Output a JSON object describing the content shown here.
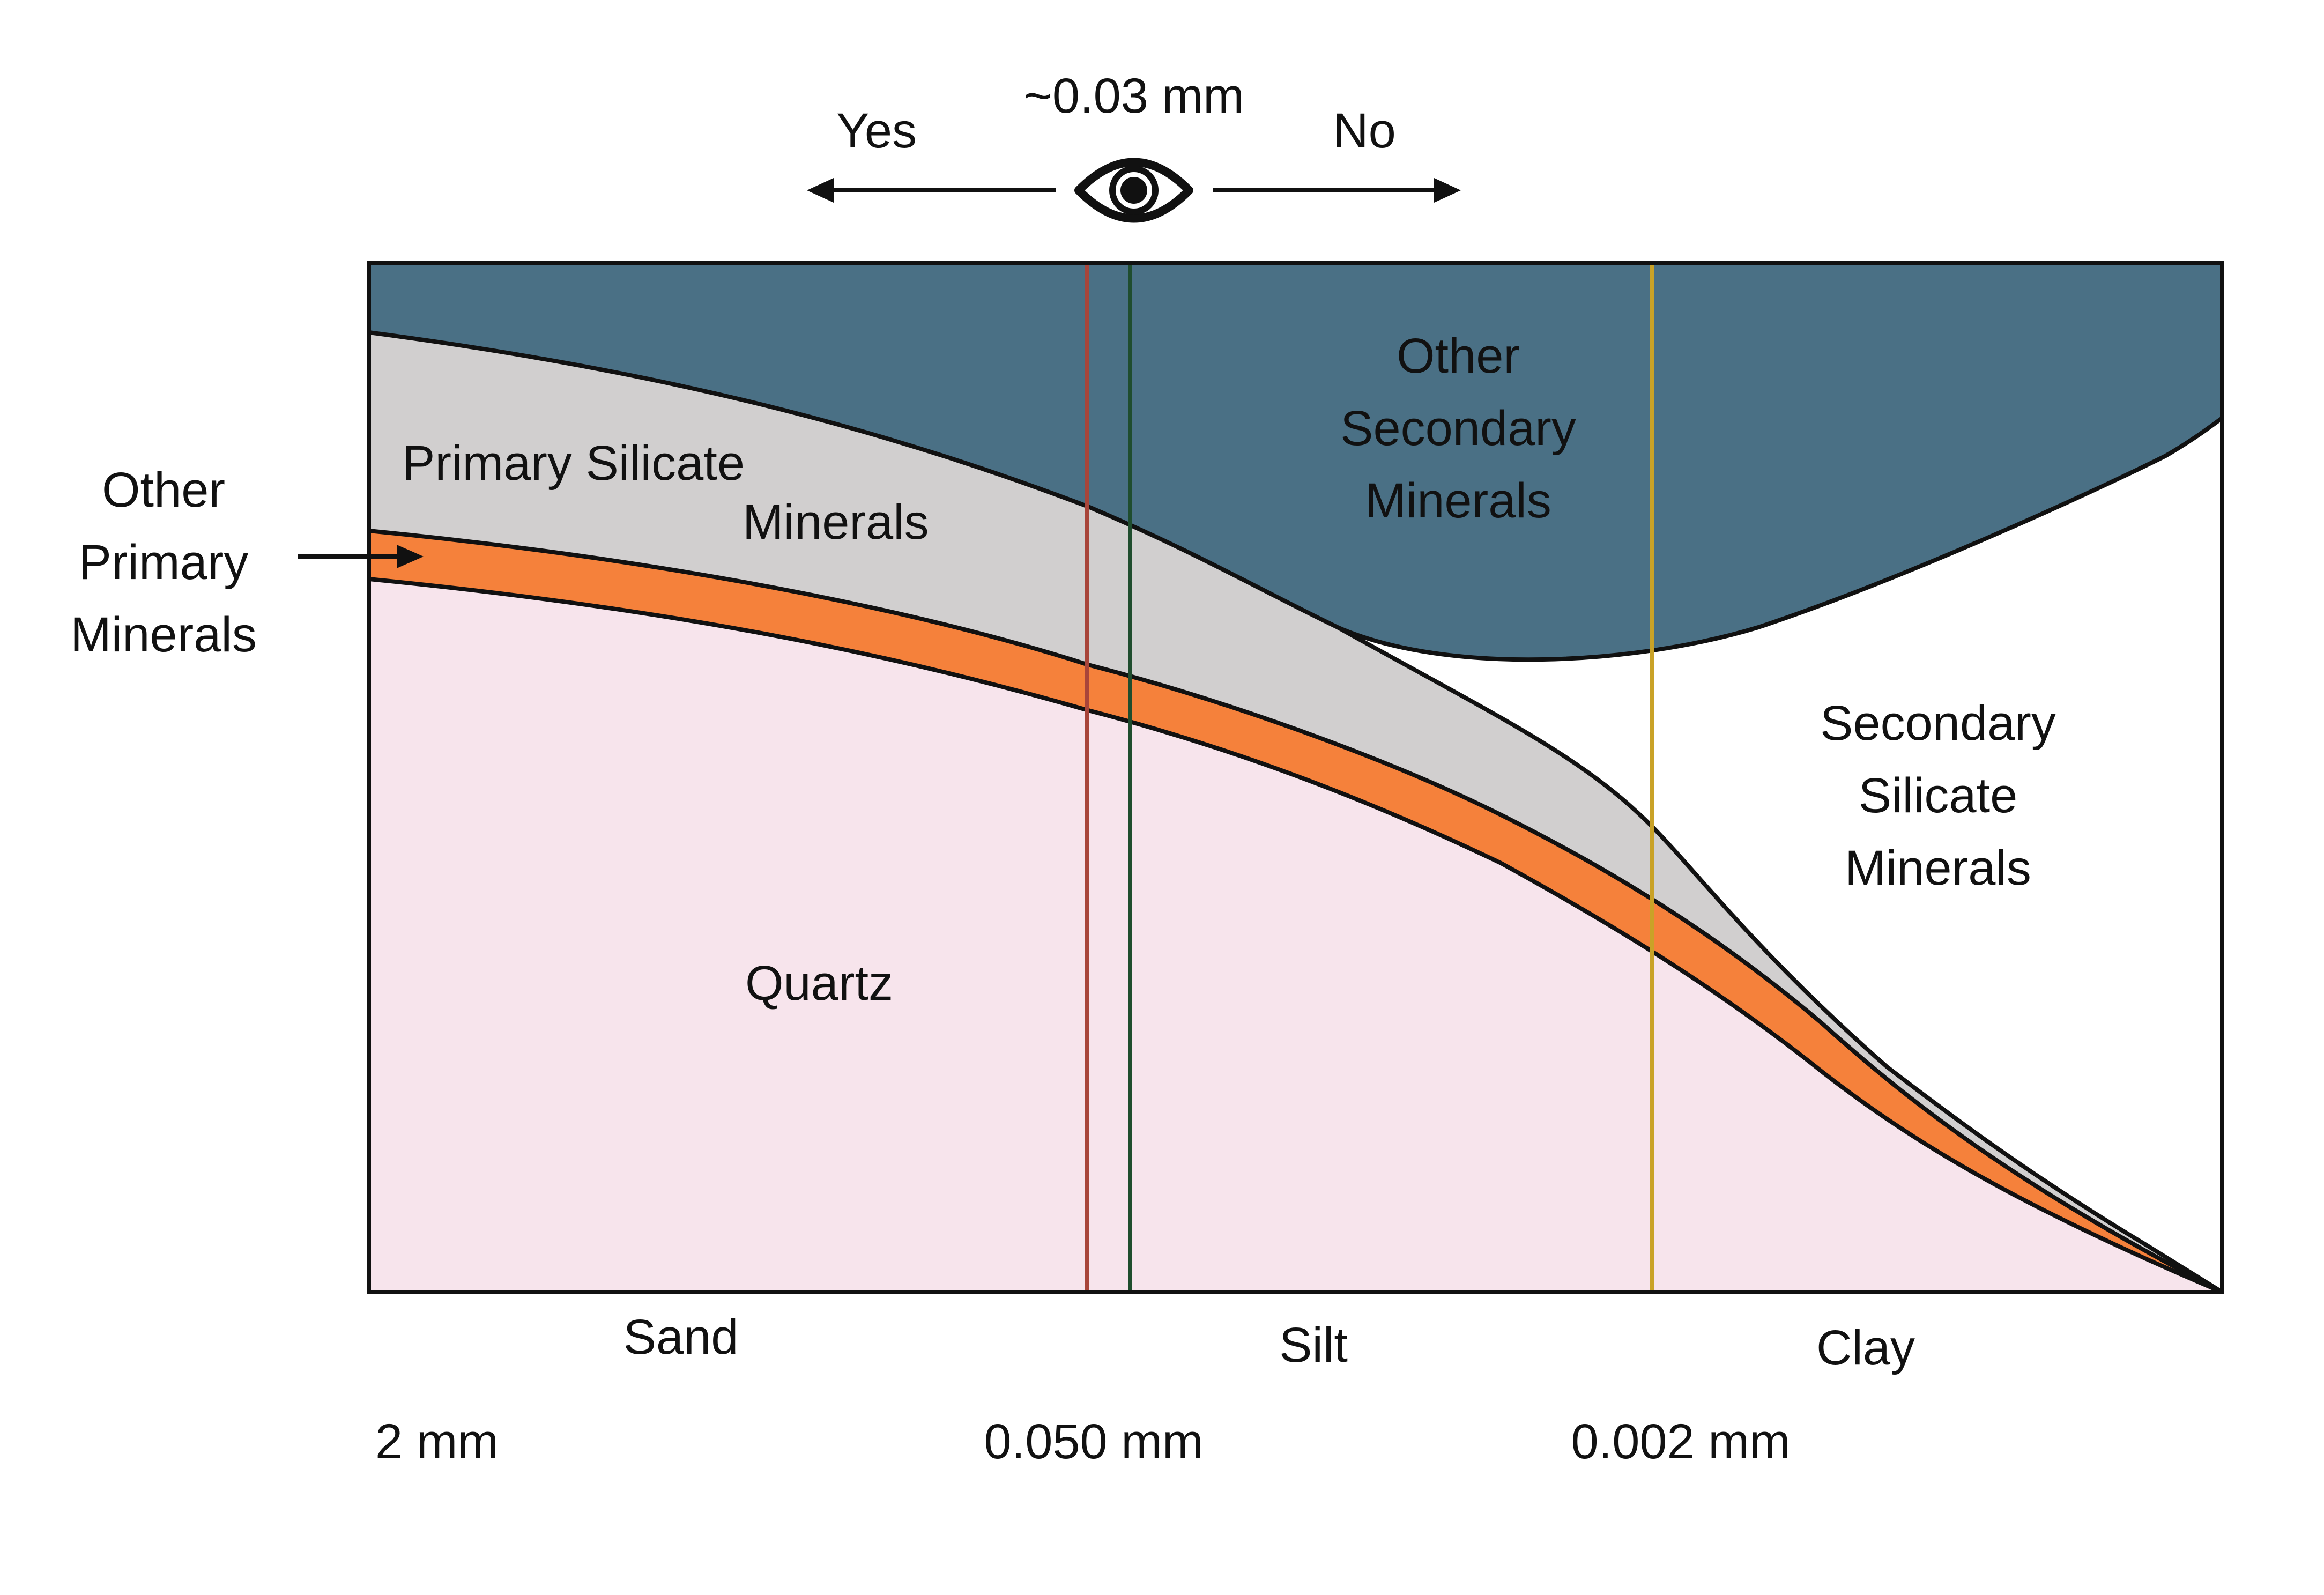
{
  "eye_indicator": {
    "threshold_label": "~0.03 mm",
    "visible_label": "Yes",
    "not_visible_label": "No",
    "icon": "eye-icon"
  },
  "regions": {
    "other_secondary": {
      "lines": [
        "Other",
        "Secondary",
        "Minerals"
      ],
      "color": "#4A7085"
    },
    "primary_silicate": {
      "lines": [
        "Primary Silicate",
        "Minerals"
      ],
      "color": "#D1CFCF"
    },
    "other_primary": {
      "lines": [
        "Other",
        "Primary",
        "Minerals"
      ],
      "color": "#F5813B"
    },
    "secondary_silicate": {
      "lines": [
        "Secondary",
        "Silicate",
        "Minerals"
      ],
      "color": "#FFFFFF"
    },
    "quartz": {
      "lines": [
        "Quartz"
      ],
      "color": "#F7E4EC"
    }
  },
  "markers": {
    "red": "#A8453A",
    "green": "#1F4D2E",
    "gold": "#C9A227"
  },
  "size_classes": [
    "Sand",
    "Silt",
    "Clay"
  ],
  "size_boundaries": [
    "2 mm",
    "0.050 mm",
    "0.002 mm"
  ]
}
